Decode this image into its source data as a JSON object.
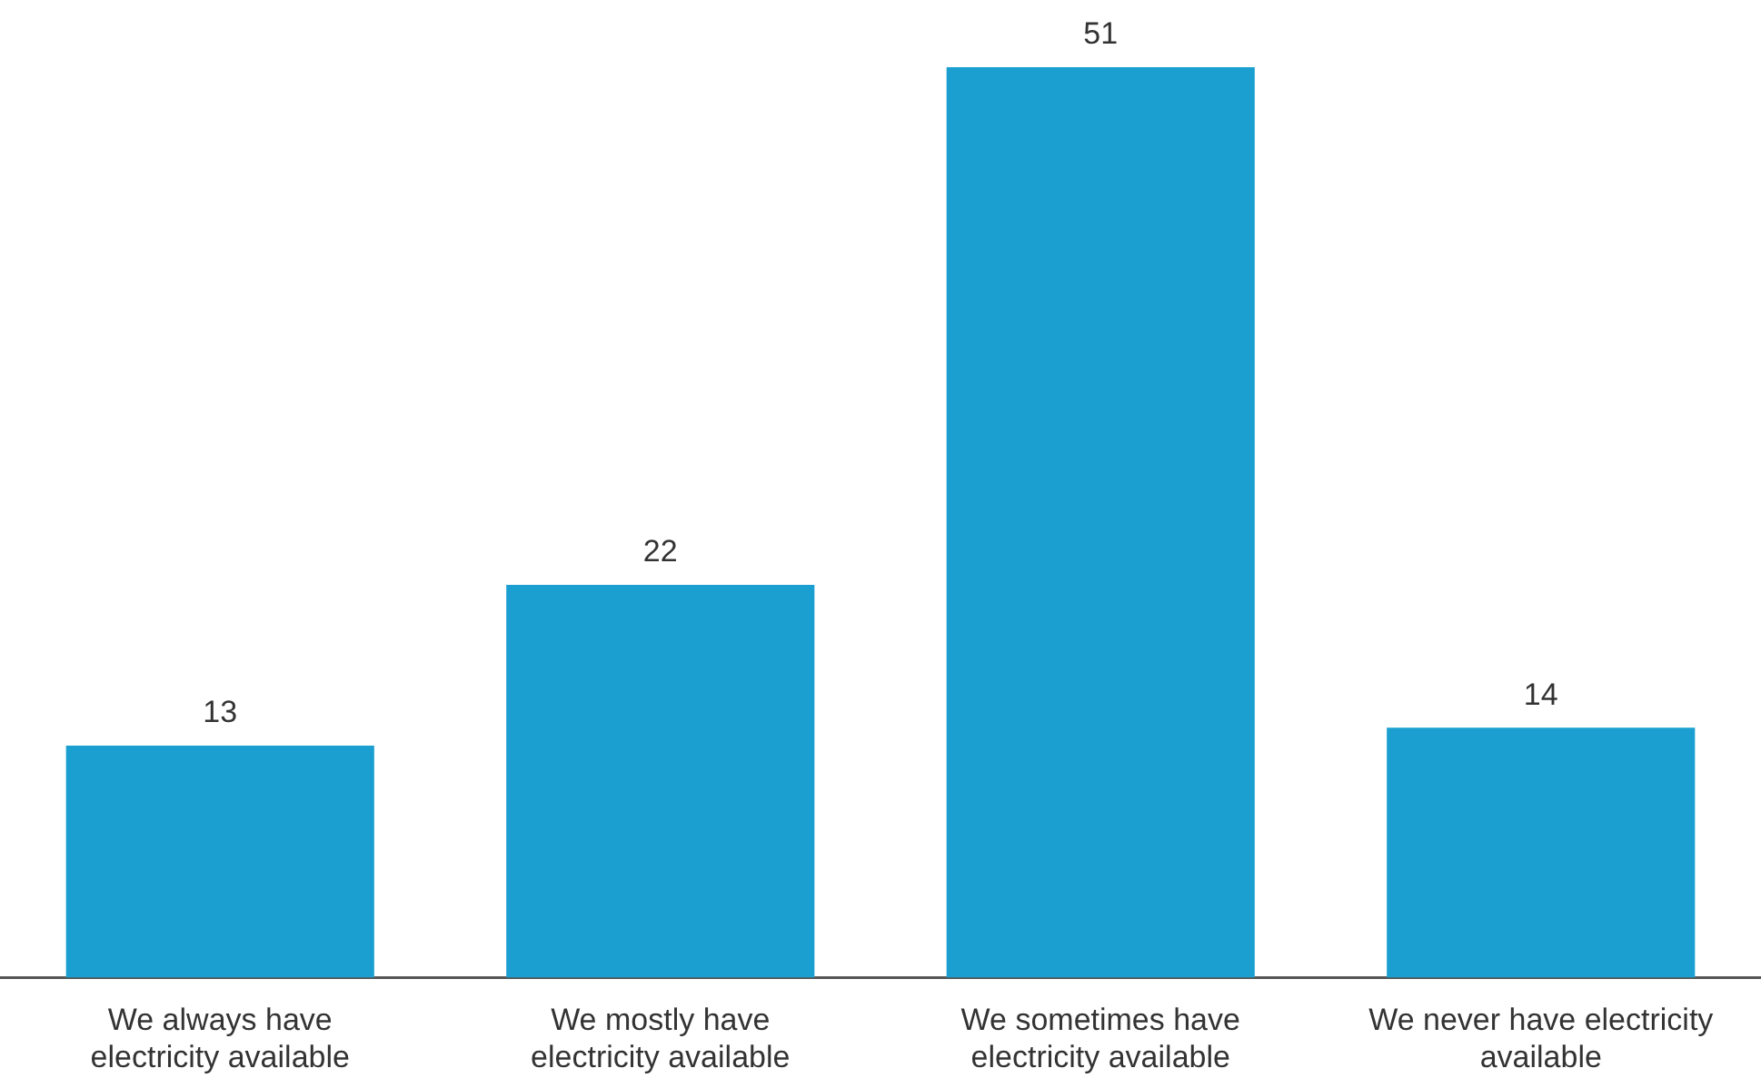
{
  "chart_data": {
    "type": "bar",
    "categories": [
      "We always have electricity available",
      "We mostly have electricity available",
      "We sometimes have electricity available",
      "We never have electricity available"
    ],
    "values": [
      13,
      22,
      51,
      14
    ],
    "color": "#1b9fd0",
    "data_labels": true
  }
}
